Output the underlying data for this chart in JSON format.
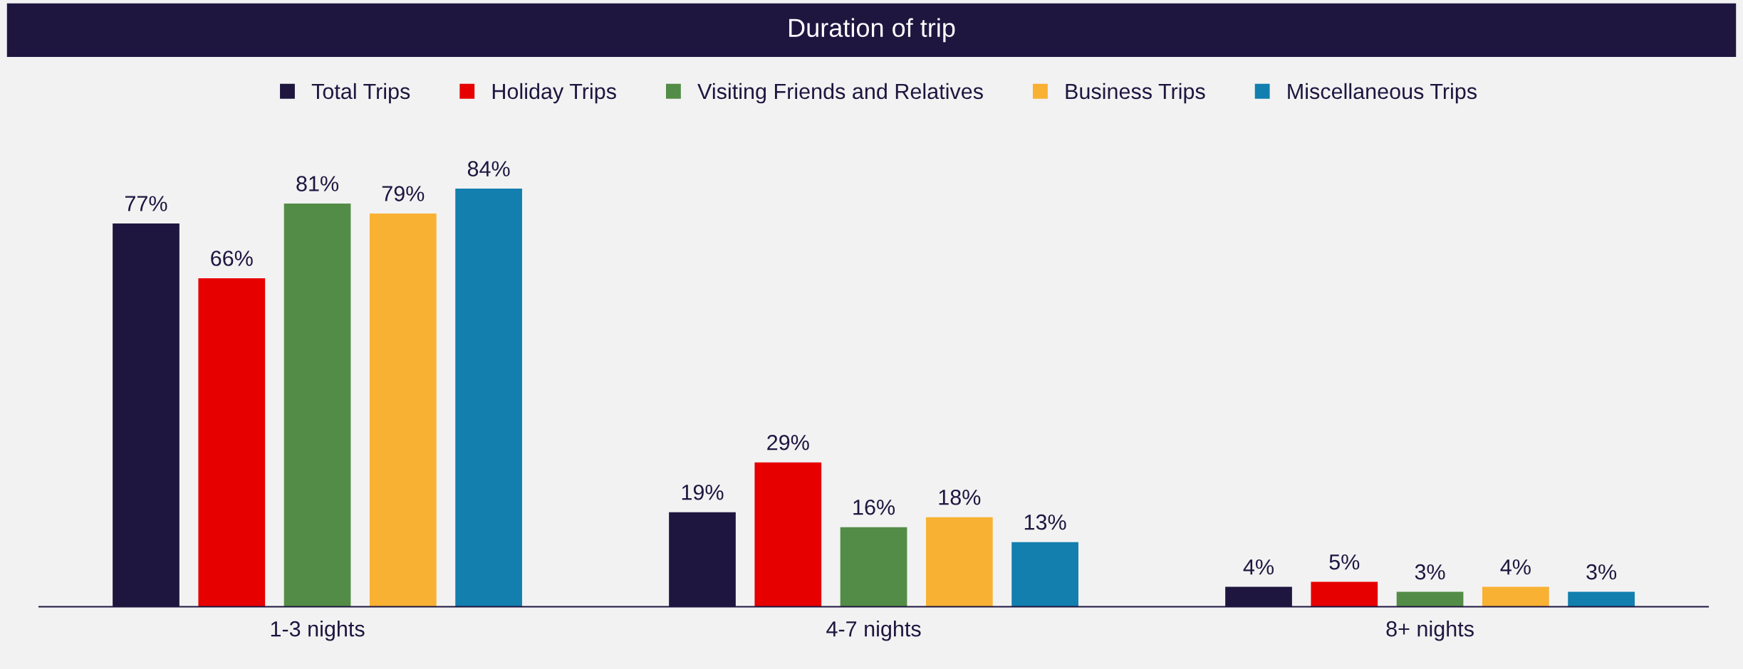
{
  "chart_data": {
    "type": "bar",
    "title": "Duration of trip",
    "categories": [
      "1-3 nights",
      "4-7 nights",
      "8+ nights"
    ],
    "series": [
      {
        "name": "Total Trips",
        "color": "#1f1640",
        "values": [
          77,
          19,
          4
        ],
        "value_labels": [
          "77%",
          "19%",
          "4%"
        ]
      },
      {
        "name": "Holiday Trips",
        "color": "#e60000",
        "values": [
          66,
          29,
          5
        ],
        "value_labels": [
          "66%",
          "29%",
          "5%"
        ]
      },
      {
        "name": "Visiting Friends and Relatives",
        "color": "#538c46",
        "values": [
          81,
          16,
          3
        ],
        "value_labels": [
          "81%",
          "16%",
          "3%"
        ]
      },
      {
        "name": "Business Trips",
        "color": "#f8b133",
        "values": [
          79,
          18,
          4
        ],
        "value_labels": [
          "79%",
          "18%",
          "4%"
        ]
      },
      {
        "name": "Miscellaneous Trips",
        "color": "#127fae",
        "values": [
          84,
          13,
          3
        ],
        "value_labels": [
          "84%",
          "13%",
          "3%"
        ]
      }
    ],
    "legend": "top",
    "grid": false
  }
}
